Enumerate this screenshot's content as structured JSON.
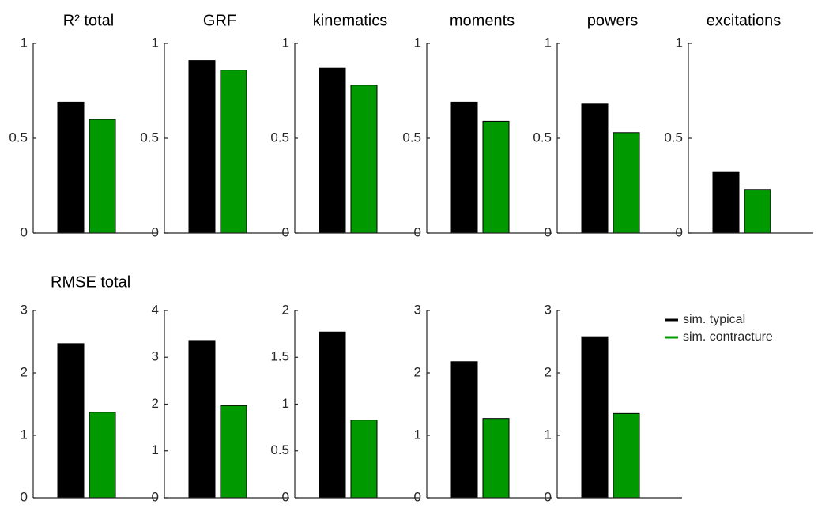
{
  "legend": {
    "series": [
      {
        "name": "sim. typical",
        "color": "#000000"
      },
      {
        "name": "sim. contracture",
        "color": "#009900"
      }
    ]
  },
  "chart_data": [
    {
      "type": "bar",
      "title": "R² total",
      "values": [
        0.69,
        0.6
      ],
      "ylim": [
        0,
        1
      ],
      "yticks": [
        0,
        0.5,
        1
      ]
    },
    {
      "type": "bar",
      "title": "GRF",
      "values": [
        0.91,
        0.86
      ],
      "ylim": [
        0,
        1
      ],
      "yticks": [
        0,
        0.5,
        1
      ]
    },
    {
      "type": "bar",
      "title": "kinematics",
      "values": [
        0.87,
        0.78
      ],
      "ylim": [
        0,
        1
      ],
      "yticks": [
        0,
        0.5,
        1
      ]
    },
    {
      "type": "bar",
      "title": "moments",
      "values": [
        0.69,
        0.59
      ],
      "ylim": [
        0,
        1
      ],
      "yticks": [
        0,
        0.5,
        1
      ]
    },
    {
      "type": "bar",
      "title": "powers",
      "values": [
        0.68,
        0.53
      ],
      "ylim": [
        0,
        1
      ],
      "yticks": [
        0,
        0.5,
        1
      ]
    },
    {
      "type": "bar",
      "title": "excitations",
      "values": [
        0.32,
        0.23
      ],
      "ylim": [
        0,
        1
      ],
      "yticks": [
        0,
        0.5,
        1
      ]
    },
    {
      "type": "bar",
      "title": "RMSE total",
      "values": [
        2.47,
        1.37
      ],
      "ylim": [
        0,
        3
      ],
      "yticks": [
        0,
        1,
        2,
        3
      ]
    },
    {
      "type": "bar",
      "values": [
        3.36,
        1.97
      ],
      "ylim": [
        0,
        4
      ],
      "yticks": [
        0,
        1,
        2,
        3,
        4
      ]
    },
    {
      "type": "bar",
      "values": [
        1.77,
        0.83
      ],
      "ylim": [
        0,
        2
      ],
      "yticks": [
        0,
        0.5,
        1,
        1.5,
        2
      ]
    },
    {
      "type": "bar",
      "values": [
        2.18,
        1.27
      ],
      "ylim": [
        0,
        3
      ],
      "yticks": [
        0,
        1,
        2,
        3
      ]
    },
    {
      "type": "bar",
      "values": [
        2.58,
        1.35
      ],
      "ylim": [
        0,
        3
      ],
      "yticks": [
        0,
        1,
        2,
        3
      ]
    }
  ]
}
